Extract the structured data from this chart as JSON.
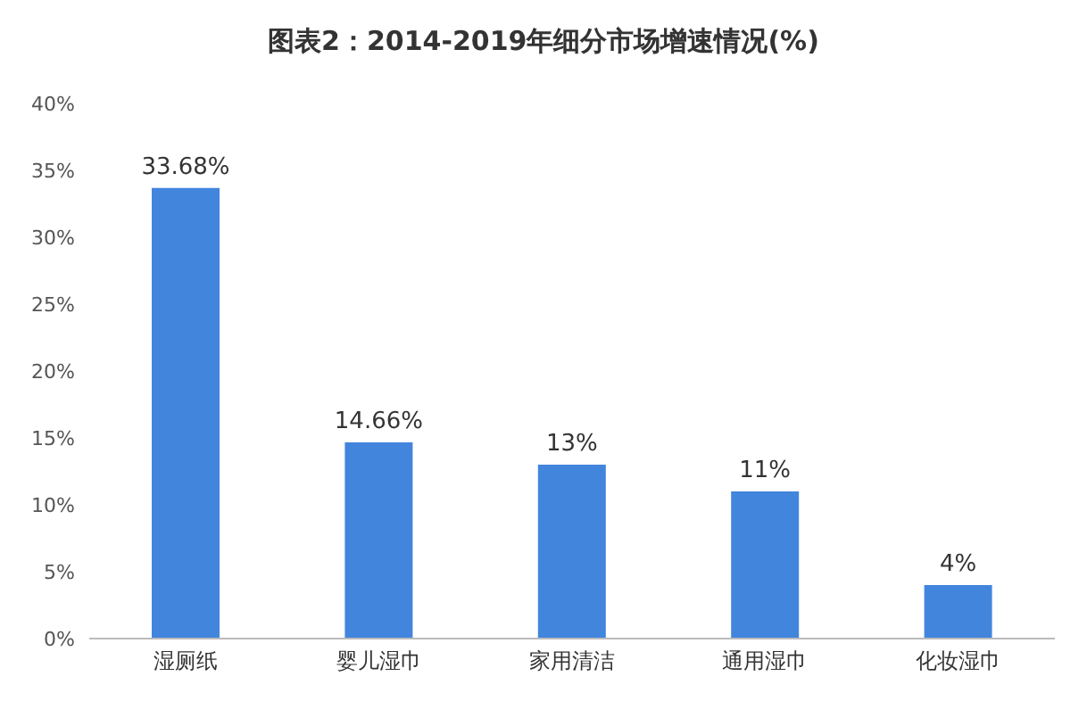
{
  "chart_data": {
    "type": "bar",
    "title": "图表2：2014-2019年细分市场增速情况(%)",
    "categories": [
      "湿厕纸",
      "婴儿湿巾",
      "家用清洁",
      "通用湿巾",
      "化妆湿巾"
    ],
    "values": [
      33.68,
      14.66,
      13,
      11,
      4
    ],
    "value_labels": [
      "33.68%",
      "14.66%",
      "13%",
      "11%",
      "4%"
    ],
    "color": "#4285dd",
    "ylim": [
      0,
      40
    ],
    "yticks": [
      {
        "value": 0,
        "label": "0%"
      },
      {
        "value": 5,
        "label": "5%"
      },
      {
        "value": 10,
        "label": "10%"
      },
      {
        "value": 15,
        "label": "15%"
      },
      {
        "value": 20,
        "label": "20%"
      },
      {
        "value": 25,
        "label": "25%"
      },
      {
        "value": 30,
        "label": "30%"
      },
      {
        "value": 35,
        "label": "35%"
      },
      {
        "value": 40,
        "label": "40%"
      }
    ],
    "grid": false
  }
}
